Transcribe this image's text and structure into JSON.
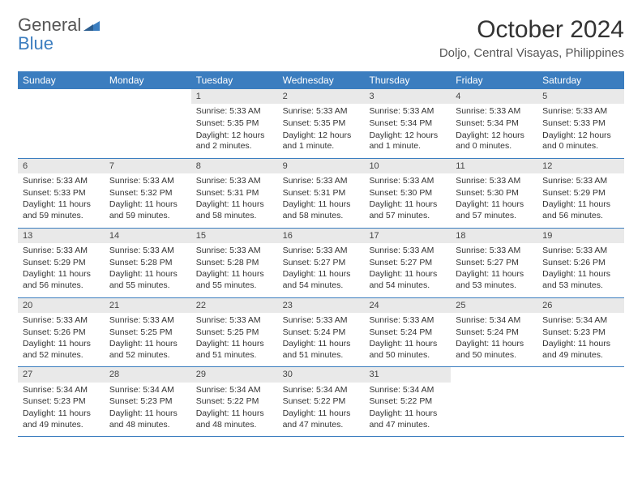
{
  "branding": {
    "word1": "General",
    "word2": "Blue",
    "triangle_color": "#3b7dbf"
  },
  "header": {
    "month_title": "October 2024",
    "location": "Doljo, Central Visayas, Philippines"
  },
  "calendar": {
    "type": "table",
    "background_color": "#ffffff",
    "header_bg": "#3b7dbf",
    "header_text_color": "#ffffff",
    "daynum_bg": "#e9e9e9",
    "rule_color": "#3b7dbf",
    "body_fontsize": 10.5,
    "header_fontsize": 12,
    "columns": [
      "Sunday",
      "Monday",
      "Tuesday",
      "Wednesday",
      "Thursday",
      "Friday",
      "Saturday"
    ],
    "weeks": [
      [
        {
          "day": "",
          "sunrise": "",
          "sunset": "",
          "daylight": ""
        },
        {
          "day": "",
          "sunrise": "",
          "sunset": "",
          "daylight": ""
        },
        {
          "day": "1",
          "sunrise": "Sunrise: 5:33 AM",
          "sunset": "Sunset: 5:35 PM",
          "daylight": "Daylight: 12 hours and 2 minutes."
        },
        {
          "day": "2",
          "sunrise": "Sunrise: 5:33 AM",
          "sunset": "Sunset: 5:35 PM",
          "daylight": "Daylight: 12 hours and 1 minute."
        },
        {
          "day": "3",
          "sunrise": "Sunrise: 5:33 AM",
          "sunset": "Sunset: 5:34 PM",
          "daylight": "Daylight: 12 hours and 1 minute."
        },
        {
          "day": "4",
          "sunrise": "Sunrise: 5:33 AM",
          "sunset": "Sunset: 5:34 PM",
          "daylight": "Daylight: 12 hours and 0 minutes."
        },
        {
          "day": "5",
          "sunrise": "Sunrise: 5:33 AM",
          "sunset": "Sunset: 5:33 PM",
          "daylight": "Daylight: 12 hours and 0 minutes."
        }
      ],
      [
        {
          "day": "6",
          "sunrise": "Sunrise: 5:33 AM",
          "sunset": "Sunset: 5:33 PM",
          "daylight": "Daylight: 11 hours and 59 minutes."
        },
        {
          "day": "7",
          "sunrise": "Sunrise: 5:33 AM",
          "sunset": "Sunset: 5:32 PM",
          "daylight": "Daylight: 11 hours and 59 minutes."
        },
        {
          "day": "8",
          "sunrise": "Sunrise: 5:33 AM",
          "sunset": "Sunset: 5:31 PM",
          "daylight": "Daylight: 11 hours and 58 minutes."
        },
        {
          "day": "9",
          "sunrise": "Sunrise: 5:33 AM",
          "sunset": "Sunset: 5:31 PM",
          "daylight": "Daylight: 11 hours and 58 minutes."
        },
        {
          "day": "10",
          "sunrise": "Sunrise: 5:33 AM",
          "sunset": "Sunset: 5:30 PM",
          "daylight": "Daylight: 11 hours and 57 minutes."
        },
        {
          "day": "11",
          "sunrise": "Sunrise: 5:33 AM",
          "sunset": "Sunset: 5:30 PM",
          "daylight": "Daylight: 11 hours and 57 minutes."
        },
        {
          "day": "12",
          "sunrise": "Sunrise: 5:33 AM",
          "sunset": "Sunset: 5:29 PM",
          "daylight": "Daylight: 11 hours and 56 minutes."
        }
      ],
      [
        {
          "day": "13",
          "sunrise": "Sunrise: 5:33 AM",
          "sunset": "Sunset: 5:29 PM",
          "daylight": "Daylight: 11 hours and 56 minutes."
        },
        {
          "day": "14",
          "sunrise": "Sunrise: 5:33 AM",
          "sunset": "Sunset: 5:28 PM",
          "daylight": "Daylight: 11 hours and 55 minutes."
        },
        {
          "day": "15",
          "sunrise": "Sunrise: 5:33 AM",
          "sunset": "Sunset: 5:28 PM",
          "daylight": "Daylight: 11 hours and 55 minutes."
        },
        {
          "day": "16",
          "sunrise": "Sunrise: 5:33 AM",
          "sunset": "Sunset: 5:27 PM",
          "daylight": "Daylight: 11 hours and 54 minutes."
        },
        {
          "day": "17",
          "sunrise": "Sunrise: 5:33 AM",
          "sunset": "Sunset: 5:27 PM",
          "daylight": "Daylight: 11 hours and 54 minutes."
        },
        {
          "day": "18",
          "sunrise": "Sunrise: 5:33 AM",
          "sunset": "Sunset: 5:27 PM",
          "daylight": "Daylight: 11 hours and 53 minutes."
        },
        {
          "day": "19",
          "sunrise": "Sunrise: 5:33 AM",
          "sunset": "Sunset: 5:26 PM",
          "daylight": "Daylight: 11 hours and 53 minutes."
        }
      ],
      [
        {
          "day": "20",
          "sunrise": "Sunrise: 5:33 AM",
          "sunset": "Sunset: 5:26 PM",
          "daylight": "Daylight: 11 hours and 52 minutes."
        },
        {
          "day": "21",
          "sunrise": "Sunrise: 5:33 AM",
          "sunset": "Sunset: 5:25 PM",
          "daylight": "Daylight: 11 hours and 52 minutes."
        },
        {
          "day": "22",
          "sunrise": "Sunrise: 5:33 AM",
          "sunset": "Sunset: 5:25 PM",
          "daylight": "Daylight: 11 hours and 51 minutes."
        },
        {
          "day": "23",
          "sunrise": "Sunrise: 5:33 AM",
          "sunset": "Sunset: 5:24 PM",
          "daylight": "Daylight: 11 hours and 51 minutes."
        },
        {
          "day": "24",
          "sunrise": "Sunrise: 5:33 AM",
          "sunset": "Sunset: 5:24 PM",
          "daylight": "Daylight: 11 hours and 50 minutes."
        },
        {
          "day": "25",
          "sunrise": "Sunrise: 5:34 AM",
          "sunset": "Sunset: 5:24 PM",
          "daylight": "Daylight: 11 hours and 50 minutes."
        },
        {
          "day": "26",
          "sunrise": "Sunrise: 5:34 AM",
          "sunset": "Sunset: 5:23 PM",
          "daylight": "Daylight: 11 hours and 49 minutes."
        }
      ],
      [
        {
          "day": "27",
          "sunrise": "Sunrise: 5:34 AM",
          "sunset": "Sunset: 5:23 PM",
          "daylight": "Daylight: 11 hours and 49 minutes."
        },
        {
          "day": "28",
          "sunrise": "Sunrise: 5:34 AM",
          "sunset": "Sunset: 5:23 PM",
          "daylight": "Daylight: 11 hours and 48 minutes."
        },
        {
          "day": "29",
          "sunrise": "Sunrise: 5:34 AM",
          "sunset": "Sunset: 5:22 PM",
          "daylight": "Daylight: 11 hours and 48 minutes."
        },
        {
          "day": "30",
          "sunrise": "Sunrise: 5:34 AM",
          "sunset": "Sunset: 5:22 PM",
          "daylight": "Daylight: 11 hours and 47 minutes."
        },
        {
          "day": "31",
          "sunrise": "Sunrise: 5:34 AM",
          "sunset": "Sunset: 5:22 PM",
          "daylight": "Daylight: 11 hours and 47 minutes."
        },
        {
          "day": "",
          "sunrise": "",
          "sunset": "",
          "daylight": ""
        },
        {
          "day": "",
          "sunrise": "",
          "sunset": "",
          "daylight": ""
        }
      ]
    ]
  }
}
